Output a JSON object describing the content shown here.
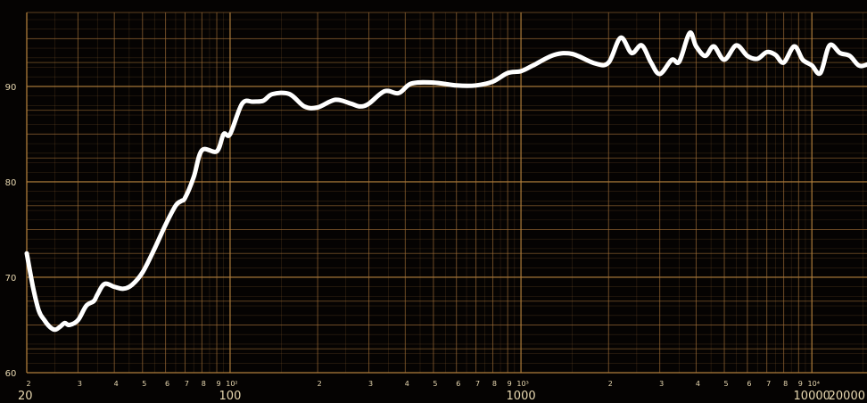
{
  "chart_data": {
    "type": "line",
    "title": "",
    "xlabel": "",
    "ylabel": "",
    "x_scale": "log",
    "xlim": [
      20,
      25000
    ],
    "ylim": [
      60,
      97
    ],
    "grid": true,
    "x_major_ticks": [
      {
        "value": 20,
        "label": "20"
      },
      {
        "value": 100,
        "label": "100"
      },
      {
        "value": 1000,
        "label": "1000"
      },
      {
        "value": 10000,
        "label": "10000"
      },
      {
        "value": 20000,
        "label": "20000"
      }
    ],
    "x_minor_ticks": [
      {
        "value": 20,
        "label": "2"
      },
      {
        "value": 30,
        "label": "3"
      },
      {
        "value": 40,
        "label": "4"
      },
      {
        "value": 50,
        "label": "5"
      },
      {
        "value": 60,
        "label": "6"
      },
      {
        "value": 70,
        "label": "7"
      },
      {
        "value": 80,
        "label": "8"
      },
      {
        "value": 90,
        "label": "9"
      },
      {
        "value": 100,
        "label": "10²"
      },
      {
        "value": 200,
        "label": "2"
      },
      {
        "value": 300,
        "label": "3"
      },
      {
        "value": 400,
        "label": "4"
      },
      {
        "value": 500,
        "label": "5"
      },
      {
        "value": 600,
        "label": "6"
      },
      {
        "value": 700,
        "label": "7"
      },
      {
        "value": 800,
        "label": "8"
      },
      {
        "value": 900,
        "label": "9"
      },
      {
        "value": 1000,
        "label": "10³"
      },
      {
        "value": 2000,
        "label": "2"
      },
      {
        "value": 3000,
        "label": "3"
      },
      {
        "value": 4000,
        "label": "4"
      },
      {
        "value": 5000,
        "label": "5"
      },
      {
        "value": 6000,
        "label": "6"
      },
      {
        "value": 7000,
        "label": "7"
      },
      {
        "value": 8000,
        "label": "8"
      },
      {
        "value": 9000,
        "label": "9"
      },
      {
        "value": 10000,
        "label": "10⁴"
      }
    ],
    "y_ticks": [
      {
        "value": 60,
        "label": "60"
      },
      {
        "value": 70,
        "label": "70"
      },
      {
        "value": 80,
        "label": "80"
      },
      {
        "value": 90,
        "label": "90"
      }
    ],
    "series": [
      {
        "x": [
          20,
          21,
          22,
          23,
          24,
          25,
          26,
          27,
          28,
          30,
          32,
          34,
          35,
          37,
          40,
          43,
          46,
          50,
          55,
          60,
          65,
          68,
          70,
          75,
          80,
          90,
          95,
          100,
          110,
          120,
          130,
          140,
          160,
          180,
          200,
          230,
          260,
          280,
          300,
          340,
          380,
          420,
          500,
          600,
          700,
          800,
          900,
          1000,
          1100,
          1300,
          1500,
          1800,
          2000,
          2200,
          2400,
          2600,
          2800,
          3000,
          3300,
          3500,
          3800,
          4000,
          4300,
          4600,
          5000,
          5500,
          6000,
          6500,
          7000,
          7500,
          8000,
          8700,
          9300,
          10000,
          10700,
          11500,
          12500,
          13500,
          14500,
          15500,
          17000,
          18500,
          20000,
          22000,
          24000,
          25000
        ],
        "y": [
          72.5,
          69,
          66.5,
          65.5,
          64.8,
          64.5,
          64.8,
          65.2,
          65,
          65.5,
          67,
          67.5,
          68.2,
          69.3,
          69,
          68.8,
          69.2,
          70.5,
          73,
          75.5,
          77.5,
          78,
          78.3,
          80.5,
          83.3,
          83.2,
          85,
          85,
          88.2,
          88.4,
          88.5,
          89.2,
          89.2,
          87.9,
          87.8,
          88.6,
          88.2,
          87.9,
          88.2,
          89.5,
          89.3,
          90.3,
          90.4,
          90.1,
          90.1,
          90.5,
          91.4,
          91.6,
          92.2,
          93.3,
          93.4,
          92.4,
          92.5,
          95.1,
          93.5,
          94.3,
          92.5,
          91.3,
          92.8,
          92.6,
          95.6,
          94.2,
          93.2,
          94.2,
          92.8,
          94.3,
          93.2,
          92.9,
          93.6,
          93.3,
          92.5,
          94.2,
          92.8,
          92.2,
          91.4,
          94.3,
          93.5,
          93.2,
          92.2,
          92.3,
          92.8,
          91.8,
          92.8,
          91.9,
          92.5,
          92.3
        ]
      }
    ]
  }
}
